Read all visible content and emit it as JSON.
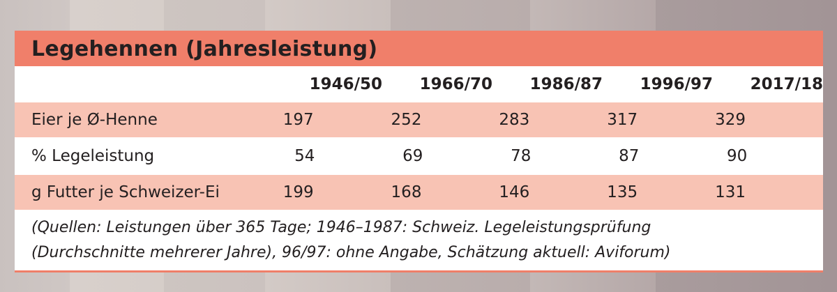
{
  "title": "Legehennen (Jahresleistung)",
  "columns": [
    "1946/50",
    "1966/70",
    "1986/87",
    "1996/97",
    "2017/18"
  ],
  "rows": [
    {
      "label": "Eier je Ø-Henne",
      "values": [
        "197",
        "252",
        "283",
        "317",
        "329"
      ]
    },
    {
      "label": "% Legeleistung",
      "values": [
        "54",
        "69",
        "78",
        "87",
        "90"
      ]
    },
    {
      "label": "g Futter je Schweizer-Ei",
      "values": [
        "199",
        "168",
        "146",
        "135",
        "131"
      ]
    }
  ],
  "footnote": [
    "(Quellen: Leistungen über 365 Tage; 1946–1987: Schweiz. Legeleistungsprüfung",
    "(Durchschnitte mehrerer Jahre), 96/97: ohne Angabe, Schätzung aktuell: Aviforum)"
  ],
  "colors": {
    "header": "#f07f6a",
    "row_pink": "#f8c3b4"
  }
}
